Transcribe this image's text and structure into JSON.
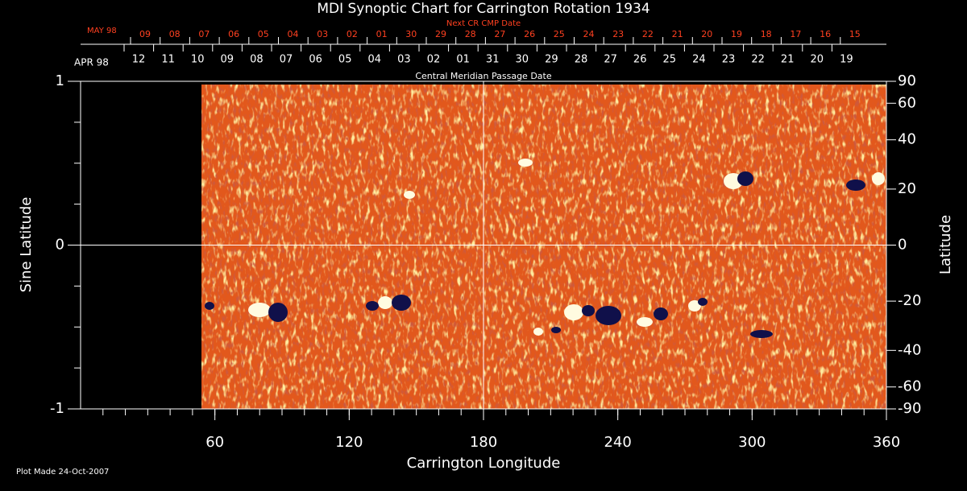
{
  "chart_data": {
    "type": "synoptic-map",
    "title": "MDI Synoptic Chart for Carrington Rotation 1934",
    "top_axis": {
      "label": "Next CR CMP Date",
      "month": "MAY 98",
      "dates": [
        "09",
        "08",
        "07",
        "06",
        "05",
        "04",
        "03",
        "02",
        "01",
        "30",
        "29",
        "28",
        "27",
        "26",
        "25",
        "24",
        "23",
        "22",
        "21",
        "20",
        "19",
        "18",
        "17",
        "16",
        "15"
      ]
    },
    "second_axis": {
      "label": "Central Meridian Passage Date",
      "month": "APR 98",
      "dates": [
        "12",
        "11",
        "10",
        "09",
        "08",
        "07",
        "06",
        "05",
        "04",
        "03",
        "02",
        "01",
        "31",
        "30",
        "29",
        "28",
        "27",
        "26",
        "25",
        "24",
        "23",
        "22",
        "21",
        "20",
        "19"
      ]
    },
    "xlabel": "Carrington Longitude",
    "ylabel": "Sine Latitude",
    "y2label": "Latitude",
    "xlim": [
      0,
      360
    ],
    "xticks": [
      60,
      120,
      180,
      240,
      300,
      360
    ],
    "ylim": [
      -1,
      1
    ],
    "yticks": [
      -1,
      0,
      1
    ],
    "y2lim": [
      -90,
      90
    ],
    "y2scale": "sine",
    "y2ticks": [
      90,
      60,
      40,
      20,
      0,
      -20,
      -40,
      -60,
      -90
    ],
    "footer": "Plot Made 24-Oct-2007"
  }
}
